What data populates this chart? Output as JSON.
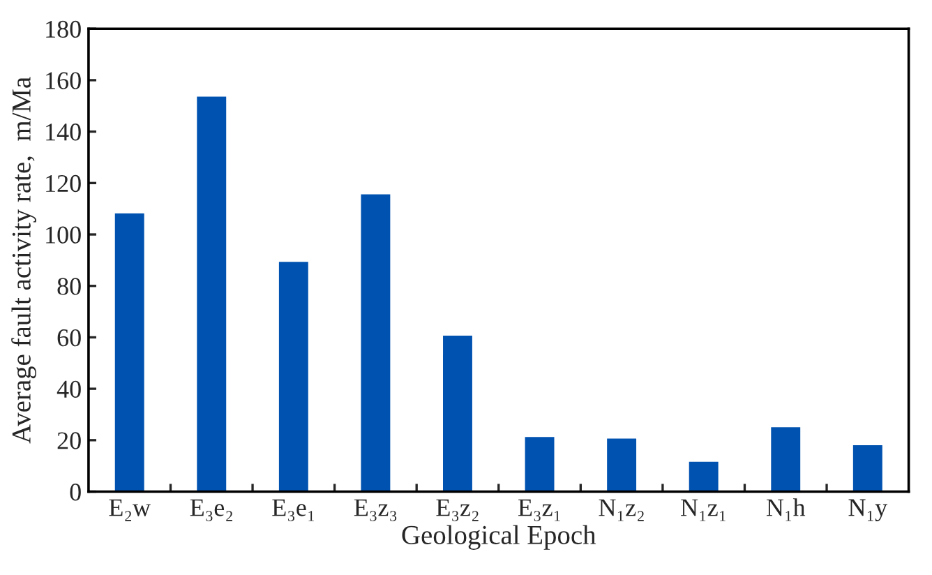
{
  "chart_data": {
    "type": "bar",
    "xlabel": "Geological Epoch",
    "ylabel": "Average fault activity rate,  m/Ma",
    "categories": [
      "E₂w",
      "E₃e₂",
      "E₃e₁",
      "E₃z₃",
      "E₃z₂",
      "E₃z₁",
      "N₁z₂",
      "N₁z₁",
      "N₁h",
      "N₁y"
    ],
    "values": [
      108.6,
      154,
      89.7,
      116,
      61,
      21.6,
      21,
      12,
      25.4,
      18.4
    ],
    "color": "#0052b0",
    "ylim": [
      0,
      180
    ],
    "yticks": [
      0,
      20,
      40,
      60,
      80,
      100,
      120,
      140,
      160,
      180
    ],
    "grid": false,
    "legend": false
  }
}
